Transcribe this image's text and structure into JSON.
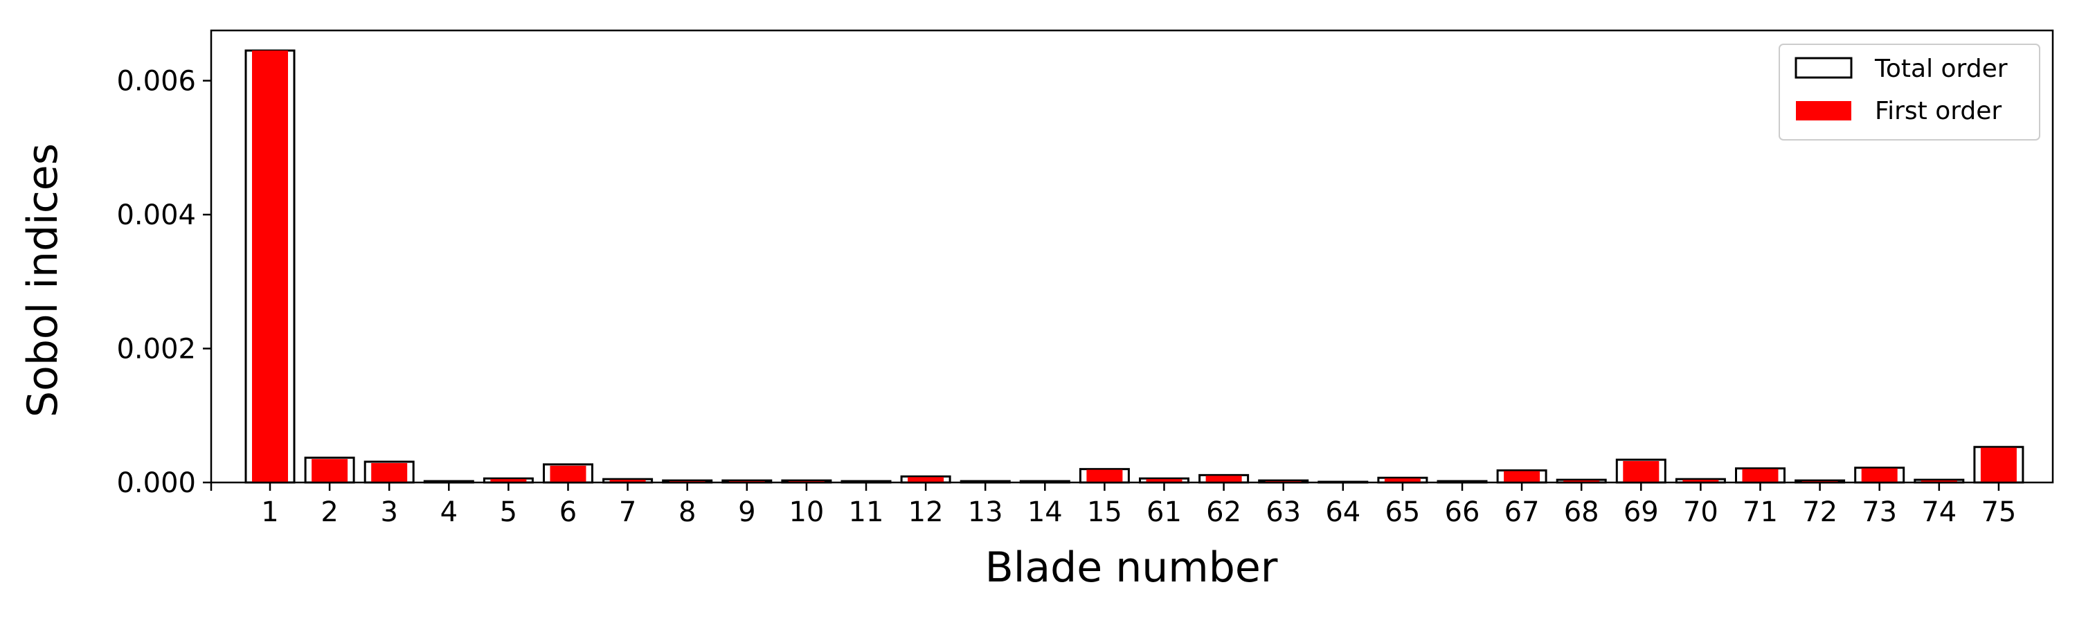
{
  "chart_data": {
    "type": "bar",
    "title": "",
    "xlabel": "Blade number",
    "ylabel": "Sobol indices",
    "categories": [
      "1",
      "2",
      "3",
      "4",
      "5",
      "6",
      "7",
      "8",
      "9",
      "10",
      "11",
      "12",
      "13",
      "14",
      "15",
      "61",
      "62",
      "63",
      "64",
      "65",
      "66",
      "67",
      "68",
      "69",
      "70",
      "71",
      "72",
      "73",
      "74",
      "75"
    ],
    "ylim": [
      0,
      0.00675
    ],
    "yticks": [
      "0.000",
      "0.002",
      "0.004",
      "0.006"
    ],
    "ytick_values": [
      0,
      0.002,
      0.004,
      0.006
    ],
    "series": [
      {
        "name": "Total order",
        "style": "outline",
        "values": [
          0.00645,
          0.00037,
          0.00031,
          2e-05,
          6e-05,
          0.00027,
          5e-05,
          3e-05,
          3e-05,
          3e-05,
          2e-05,
          9e-05,
          2e-05,
          2e-05,
          0.0002,
          6e-05,
          0.00011,
          3e-05,
          1e-05,
          7e-05,
          2e-05,
          0.00018,
          4e-05,
          0.00034,
          5e-05,
          0.00021,
          3e-05,
          0.00022,
          4e-05,
          0.00053
        ]
      },
      {
        "name": "First order",
        "style": "filled",
        "values": [
          0.00645,
          0.00035,
          0.00029,
          1e-05,
          5e-05,
          0.00025,
          4e-05,
          2e-05,
          2e-05,
          2e-05,
          1e-05,
          8e-05,
          1e-05,
          1e-05,
          0.00019,
          5e-05,
          0.0001,
          2e-05,
          0.0,
          6e-05,
          1e-05,
          0.00017,
          3e-05,
          0.00032,
          4e-05,
          0.0002,
          2e-05,
          0.00021,
          3e-05,
          0.00052
        ]
      }
    ],
    "legend_position": "top-right",
    "grid": false,
    "colors": {
      "first_order": "#ff0000",
      "total_order_edge": "#000000",
      "axes": "#000000"
    }
  }
}
